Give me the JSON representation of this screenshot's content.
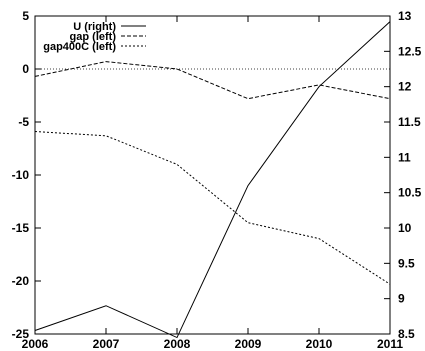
{
  "chart_data": {
    "type": "line",
    "x": [
      2006,
      2007,
      2008,
      2009,
      2010,
      2011
    ],
    "x_ticks": [
      "2006",
      "2007",
      "2008",
      "2009",
      "2010",
      "2011"
    ],
    "xlim": [
      2006,
      2011
    ],
    "left_axis": {
      "ylim": [
        -25,
        5
      ],
      "ticks": [
        5,
        0,
        -5,
        -10,
        -15,
        -20,
        -25
      ]
    },
    "right_axis": {
      "ylim": [
        8.5,
        13
      ],
      "ticks": [
        "13",
        "12.5",
        "12",
        "11.5",
        "11",
        "10.5",
        "10",
        "9.5",
        "9",
        "8.5"
      ]
    },
    "series": [
      {
        "name": "U (right)",
        "axis": "right",
        "style": "solid",
        "values": [
          8.55,
          8.9,
          8.45,
          10.6,
          12.0,
          12.92
        ]
      },
      {
        "name": "gap (left)",
        "axis": "left",
        "style": "dashed",
        "values": [
          -0.7,
          0.7,
          0.0,
          -2.8,
          -1.5,
          -2.8
        ]
      },
      {
        "name": "gap400C (left)",
        "axis": "left",
        "style": "dotted",
        "values": [
          -5.9,
          -6.3,
          -9.0,
          -14.5,
          -16.0,
          -20.3
        ]
      }
    ],
    "reference_lines": [
      {
        "axis": "left",
        "value": 0,
        "style": "dotted"
      }
    ],
    "legend_position": "top-left",
    "grid": false,
    "title": "",
    "xlabel": "",
    "ylabel": ""
  }
}
